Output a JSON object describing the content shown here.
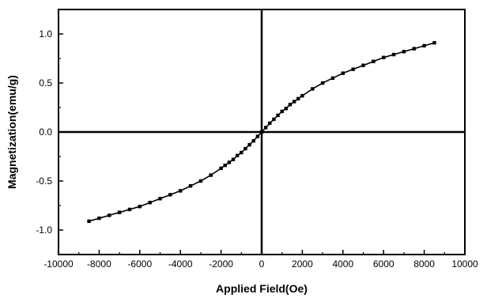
{
  "chart_data": {
    "type": "line",
    "title": "",
    "xlabel": "Applied Field(Oe)",
    "ylabel": "Magnetization(emu/g)",
    "xlim": [
      -10000,
      10000
    ],
    "ylim": [
      -1.25,
      1.25
    ],
    "xticks": [
      -10000,
      -8000,
      -6000,
      -4000,
      -2000,
      0,
      2000,
      4000,
      6000,
      8000,
      10000
    ],
    "yticks": [
      -1.0,
      -0.5,
      0.0,
      0.5,
      1.0
    ],
    "xtick_labels": [
      "-10000",
      "-8000",
      "-6000",
      "-4000",
      "-2000",
      "0",
      "2000",
      "4000",
      "6000",
      "8000",
      "10000"
    ],
    "ytick_labels": [
      "-1.0",
      "-0.5",
      "0.0",
      "0.5",
      "1.0"
    ],
    "grid": false,
    "zero_lines": true,
    "marker": "square",
    "color": "#000000",
    "series": [
      {
        "x": [
          -8500,
          -8000,
          -7500,
          -7000,
          -6500,
          -6000,
          -5500,
          -5000,
          -4500,
          -4000,
          -3500,
          -3000,
          -2500,
          -2000,
          -1800,
          -1600,
          -1400,
          -1200,
          -1000,
          -800,
          -600,
          -400,
          -200,
          0,
          200,
          400,
          600,
          800,
          1000,
          1200,
          1400,
          1600,
          1800,
          2000,
          2500,
          3000,
          3500,
          4000,
          4500,
          5000,
          5500,
          6000,
          6500,
          7000,
          7500,
          8000,
          8500
        ],
        "y": [
          -0.91,
          -0.88,
          -0.85,
          -0.82,
          -0.79,
          -0.76,
          -0.72,
          -0.68,
          -0.64,
          -0.6,
          -0.55,
          -0.5,
          -0.44,
          -0.37,
          -0.34,
          -0.31,
          -0.28,
          -0.24,
          -0.21,
          -0.17,
          -0.13,
          -0.09,
          -0.045,
          0.0,
          0.045,
          0.09,
          0.13,
          0.17,
          0.21,
          0.24,
          0.28,
          0.31,
          0.34,
          0.37,
          0.44,
          0.5,
          0.55,
          0.6,
          0.64,
          0.68,
          0.72,
          0.76,
          0.79,
          0.82,
          0.85,
          0.88,
          0.91
        ]
      }
    ]
  }
}
